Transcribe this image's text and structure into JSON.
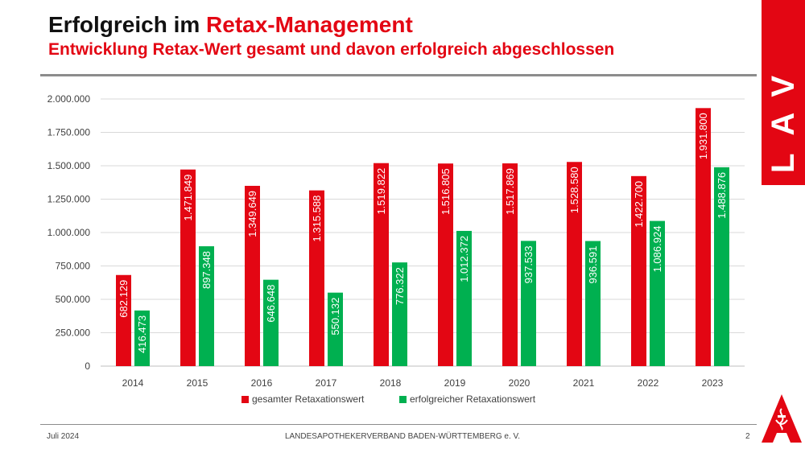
{
  "header": {
    "title_part1": "Erfolgreich im ",
    "title_part2": "Retax-Management",
    "subtitle": "Entwicklung Retax-Wert gesamt und davon erfolgreich abgeschlossen"
  },
  "brand": {
    "letters": "LAV",
    "color": "#e30613"
  },
  "footer": {
    "date": "Juli 2024",
    "organization": "LANDESAPOTHEKERVERBAND BADEN-WÜRTTEMBERG e. V.",
    "page": "2"
  },
  "chart_data": {
    "type": "bar",
    "title": "",
    "xlabel": "",
    "ylabel": "",
    "categories": [
      "2014",
      "2015",
      "2016",
      "2017",
      "2018",
      "2019",
      "2020",
      "2021",
      "2022",
      "2023"
    ],
    "ylim": [
      0,
      2000000
    ],
    "yticks": [
      0,
      250000,
      500000,
      750000,
      1000000,
      1250000,
      1500000,
      1750000,
      2000000
    ],
    "ytick_labels": [
      "0",
      "250.000",
      "500.000",
      "750.000",
      "1.000.000",
      "1.250.000",
      "1.500.000",
      "1.750.000",
      "2.000.000"
    ],
    "grid": true,
    "legend_position": "bottom",
    "series": [
      {
        "name": "gesamter Retaxationswert",
        "color": "#e30613",
        "values": [
          682129,
          1471849,
          1349649,
          1315588,
          1519822,
          1516805,
          1517869,
          1528580,
          1422700,
          1931800
        ],
        "labels": [
          "682.129",
          "1.471.849",
          "1.349.649",
          "1.315.588",
          "1.519.822",
          "1.516.805",
          "1.517.869",
          "1.528.580",
          "1.422.700",
          "1.931.800"
        ]
      },
      {
        "name": "erfolgreicher Retaxationswert",
        "color": "#00b050",
        "values": [
          416473,
          897348,
          646648,
          550132,
          776322,
          1012372,
          937533,
          936591,
          1086924,
          1488876
        ],
        "labels": [
          "416.473",
          "897.348",
          "646.648",
          "550.132",
          "776.322",
          "1.012.372",
          "937.533",
          "936.591",
          "1.086.924",
          "1.488.876"
        ]
      }
    ]
  }
}
